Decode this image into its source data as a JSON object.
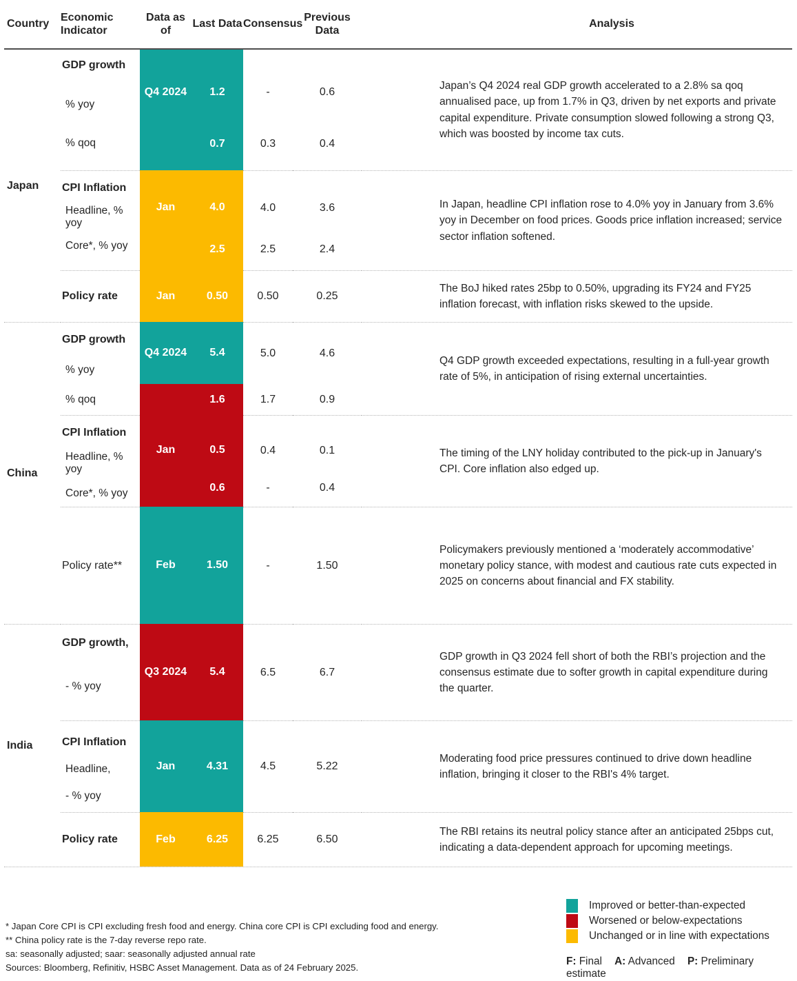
{
  "colors": {
    "improved": "#12A39B",
    "worsened": "#BE0A14",
    "unchanged": "#FCBA00"
  },
  "header": {
    "cols": [
      "Country",
      "Economic Indicator",
      "Data as of",
      "Last Data",
      "Consensus",
      "Previous Data",
      "Analysis"
    ]
  },
  "countries": [
    {
      "name": "Japan",
      "sections": [
        {
          "title": "GDP growth",
          "subs": [
            "% yoy",
            "% qoq"
          ],
          "rows": [
            {
              "asof": "Q4 2024",
              "last": "1.2",
              "consensus": "-",
              "previous": "0.6",
              "status": "improved"
            },
            {
              "asof": "",
              "last": "0.7",
              "consensus": "0.3",
              "previous": "0.4",
              "status": "improved"
            }
          ],
          "analysis": "Japan’s Q4 2024 real GDP growth accelerated to a 2.8% sa qoq annualised pace, up from 1.7% in Q3, driven by net exports and private capital expenditure. Private consumption slowed following a strong Q3, which was boosted by income tax cuts."
        },
        {
          "title": "CPI Inflation",
          "subs": [
            "Headline, % yoy",
            "Core*, % yoy"
          ],
          "rows": [
            {
              "asof": "Jan",
              "last": "4.0",
              "consensus": "4.0",
              "previous": "3.6",
              "status": "unchanged"
            },
            {
              "asof": "",
              "last": "2.5",
              "consensus": "2.5",
              "previous": "2.4",
              "status": "unchanged"
            }
          ],
          "analysis": "In Japan, headline CPI inflation rose to 4.0% yoy in January from 3.6% yoy in December on food prices. Goods price inflation increased; service sector inflation softened."
        },
        {
          "title": "Policy rate",
          "subs": [],
          "rows": [
            {
              "asof": "Jan",
              "last": "0.50",
              "consensus": "0.50",
              "previous": "0.25",
              "status": "unchanged"
            }
          ],
          "analysis": "The BoJ hiked rates 25bp to 0.50%, upgrading its FY24 and FY25 inflation forecast, with inflation risks skewed to the upside."
        }
      ]
    },
    {
      "name": "China",
      "sections": [
        {
          "title": "GDP growth",
          "subs": [
            "% yoy",
            "% qoq"
          ],
          "rows": [
            {
              "asof": "Q4 2024",
              "last": "5.4",
              "consensus": "5.0",
              "previous": "4.6",
              "status": "improved"
            },
            {
              "asof": "",
              "last": "1.6",
              "consensus": "1.7",
              "previous": "0.9",
              "status": "worsened"
            }
          ],
          "analysis": "Q4 GDP growth exceeded expectations, resulting in a full-year growth rate of 5%, in anticipation of rising external uncertainties."
        },
        {
          "title": "CPI Inflation",
          "subs": [
            "Headline, % yoy",
            "Core*, % yoy"
          ],
          "rows": [
            {
              "asof": "Jan",
              "last": "0.5",
              "consensus": "0.4",
              "previous": "0.1",
              "status": "worsened"
            },
            {
              "asof": "",
              "last": "0.6",
              "consensus": "-",
              "previous": "0.4",
              "status": "worsened"
            }
          ],
          "analysis": "The timing of the LNY holiday contributed to the pick-up in January's CPI. Core inflation also edged up."
        },
        {
          "title": "Policy rate**",
          "subs": [],
          "rows": [
            {
              "asof": "Feb",
              "last": "1.50",
              "consensus": "-",
              "previous": "1.50",
              "status": "improved"
            }
          ],
          "analysis": "Policymakers previously mentioned a ‘moderately accommodative’ monetary policy stance, with modest and cautious rate cuts expected in 2025 on concerns about financial and FX stability."
        }
      ]
    },
    {
      "name": "India",
      "sections": [
        {
          "title": "GDP growth,",
          "subs": [
            "- % yoy"
          ],
          "rows": [
            {
              "asof": "Q3 2024",
              "last": "5.4",
              "consensus": "6.5",
              "previous": "6.7",
              "status": "worsened"
            }
          ],
          "analysis": "GDP growth in Q3 2024 fell short of both the RBI’s projection and the consensus estimate due to softer growth in capital expenditure during the quarter."
        },
        {
          "title": "CPI Inflation",
          "subs": [
            "Headline,",
            "- % yoy"
          ],
          "rows": [
            {
              "asof": "Jan",
              "last": "4.31",
              "consensus": "4.5",
              "previous": "5.22",
              "status": "improved"
            }
          ],
          "analysis": "Moderating food price pressures continued to drive down headline inflation, bringing it closer to the RBI's 4% target."
        },
        {
          "title": "Policy rate",
          "subs": [],
          "rows": [
            {
              "asof": "Feb",
              "last": "6.25",
              "consensus": "6.25",
              "previous": "6.50",
              "status": "unchanged"
            }
          ],
          "analysis": "The RBI retains its neutral policy stance after an anticipated 25bps cut, indicating a data-dependent approach for upcoming meetings."
        }
      ]
    }
  ],
  "footnotes": [
    "* Japan Core CPI is CPI excluding fresh food and energy. China core CPI is CPI excluding food and energy.",
    "** China policy rate is the 7-day reverse repo rate.",
    "sa: seasonally adjusted; saar: seasonally adjusted annual rate",
    "Sources: Bloomberg, Refinitiv, HSBC Asset Management. Data as of 24 February 2025."
  ],
  "legend": {
    "items": [
      {
        "status": "improved",
        "label": "Improved or better-than-expected"
      },
      {
        "status": "worsened",
        "label": "Worsened or below-expectations"
      },
      {
        "status": "unchanged",
        "label": "Unchanged or in line with expectations"
      }
    ],
    "estimates": [
      {
        "key": "F:",
        "label": "Final"
      },
      {
        "key": "A:",
        "label": "Advanced"
      },
      {
        "key": "P:",
        "label": "Preliminary estimate"
      }
    ]
  }
}
